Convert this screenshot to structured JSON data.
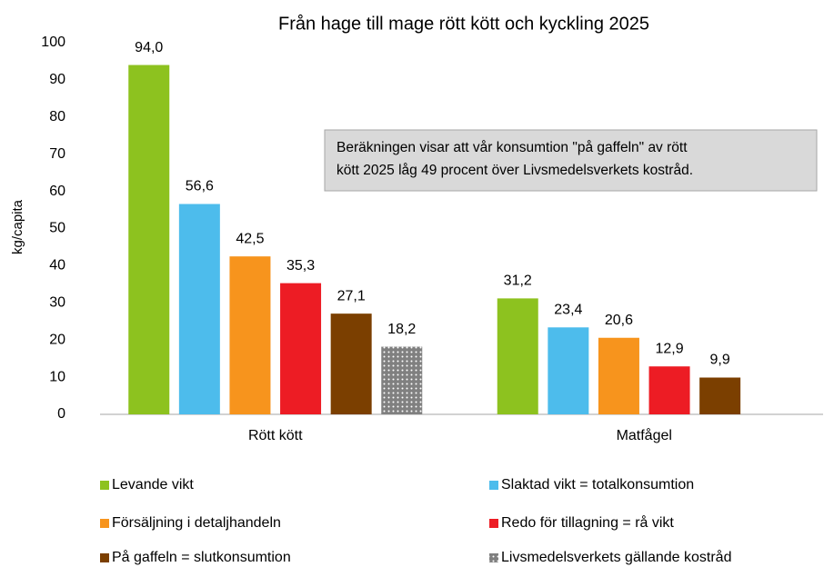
{
  "chart_data": {
    "type": "bar",
    "title": "Från hage till mage rött kött och kyckling 2025",
    "ylabel": "kg/capita",
    "annotation": [
      "Beräkningen visar att vår konsumtion \"på gaffeln\" av rött",
      "kött 2025 låg 49 procent över Livsmedelsverkets kostråd."
    ],
    "categories": [
      "Rött kött",
      "Matfågel"
    ],
    "series": [
      {
        "name": "Levande vikt",
        "color": "#8dc21f",
        "values": [
          94.0,
          31.2
        ],
        "value_labels": [
          "94,0",
          "31,2"
        ]
      },
      {
        "name": "Slaktad vikt = totalkonsumtion",
        "color": "#4dbcec",
        "values": [
          56.6,
          23.4
        ],
        "value_labels": [
          "56,6",
          "23,4"
        ]
      },
      {
        "name": "Försäljning i detaljhandeln",
        "color": "#f7941d",
        "values": [
          42.5,
          20.6
        ],
        "value_labels": [
          "42,5",
          "20,6"
        ]
      },
      {
        "name": "Redo för tillagning = rå vikt",
        "color": "#ed1c24",
        "values": [
          35.3,
          12.9
        ],
        "value_labels": [
          "35,3",
          "12,9"
        ]
      },
      {
        "name": "På gaffeln = slutkonsumtion",
        "color": "#7b3f00",
        "values": [
          27.1,
          9.9
        ],
        "value_labels": [
          "27,1",
          "9,9"
        ]
      },
      {
        "name": "Livsmedelsverkets gällande kostråd",
        "color": "#808080",
        "pattern": "dots",
        "values": [
          18.2,
          null
        ],
        "value_labels": [
          "18,2",
          null
        ]
      }
    ],
    "ylim": [
      0,
      100
    ],
    "yticks": [
      0,
      10,
      20,
      30,
      40,
      50,
      60,
      70,
      80,
      90,
      100
    ],
    "grid": false
  }
}
